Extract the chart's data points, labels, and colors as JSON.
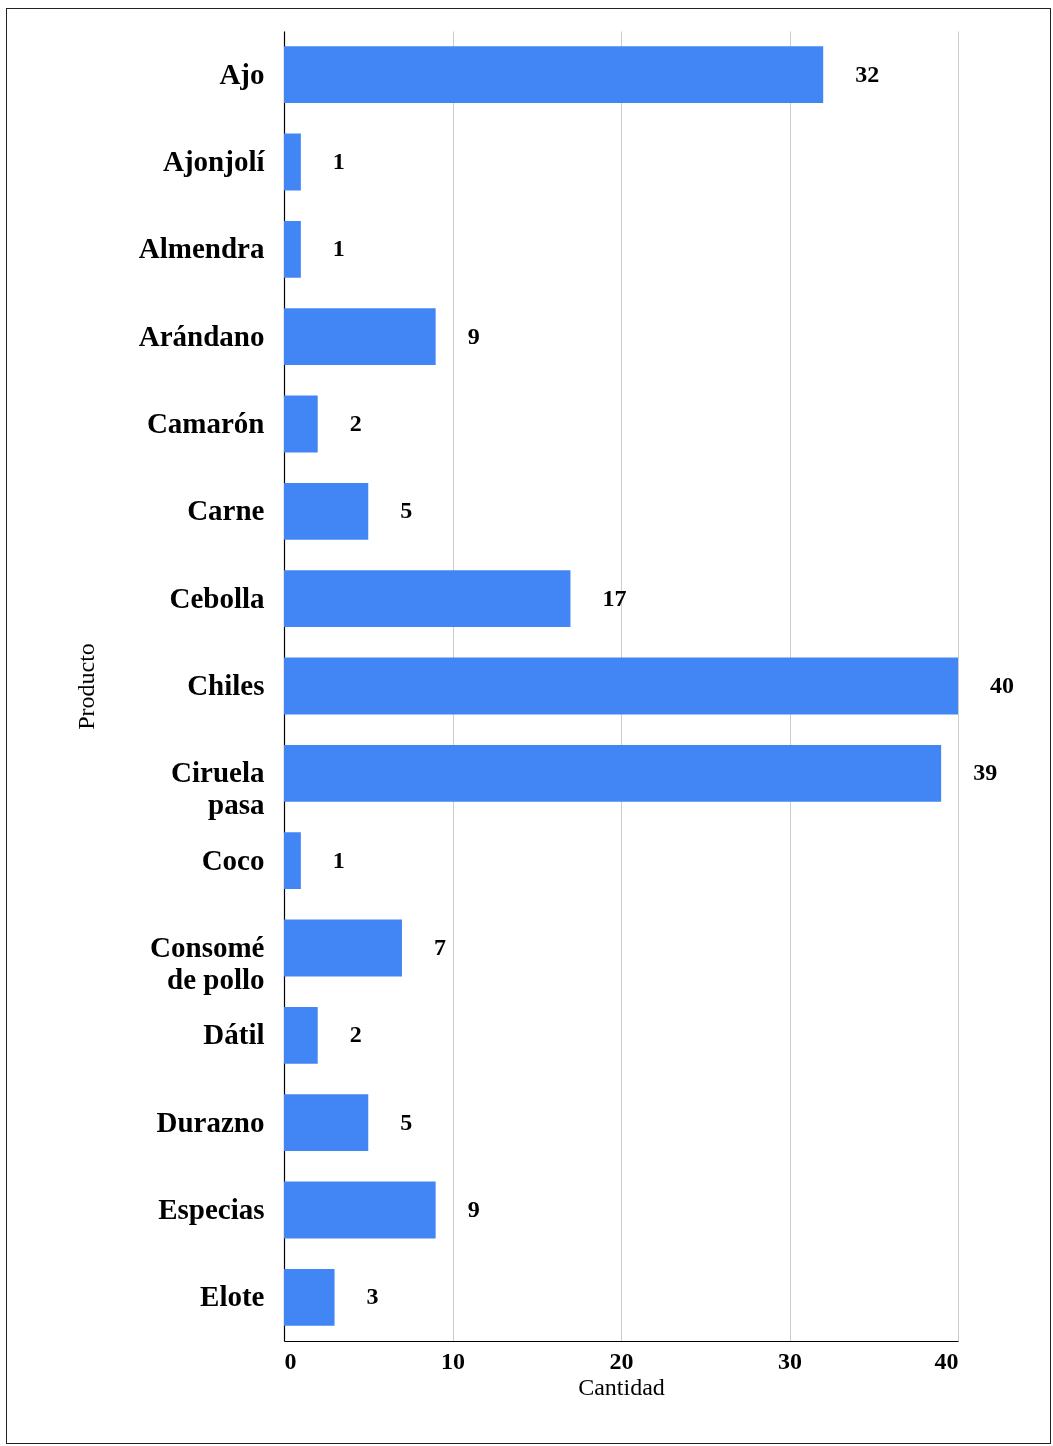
{
  "chart_data": {
    "type": "bar",
    "orientation": "horizontal",
    "xlabel": "Cantidad",
    "ylabel": "Producto",
    "categories": [
      "Ajo",
      "Ajonjolí",
      "Almendra",
      "Arándano",
      "Camarón",
      "Carne",
      "Cebolla",
      "Chiles",
      "Ciruela pasa",
      "Coco",
      "Consomé de pollo",
      "Dátil",
      "Durazno",
      "Especias",
      "Elote"
    ],
    "values": [
      32,
      1,
      1,
      9,
      2,
      5,
      17,
      40,
      39,
      1,
      7,
      2,
      5,
      9,
      3
    ],
    "color": "#4285f4",
    "xlim": [
      0,
      40
    ],
    "xticks": [
      0,
      10,
      20,
      30,
      40
    ],
    "grid": "x",
    "data_labels": true
  }
}
